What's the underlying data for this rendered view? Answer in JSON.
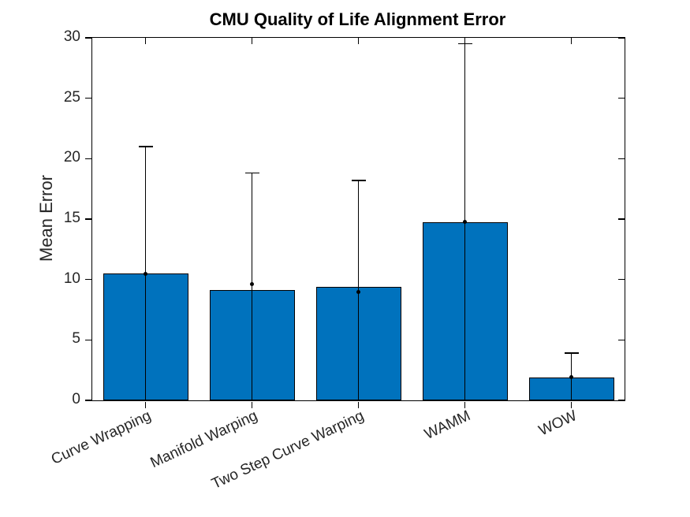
{
  "figure": {
    "background": "#ffffff"
  },
  "chart_data": {
    "type": "bar",
    "title": "CMU Quality of Life Alignment Error",
    "xlabel": "",
    "ylabel": "Mean Error",
    "categories": [
      "Curve Wrapping",
      "Manifold Warping",
      "Two Step Curve Warping",
      "WAMM",
      "WOW"
    ],
    "values": [
      10.5,
      9.1,
      9.4,
      14.75,
      1.9
    ],
    "error_high": [
      21.0,
      18.8,
      18.2,
      29.5,
      3.9
    ],
    "error_low": [
      0,
      0,
      0,
      0,
      0
    ],
    "marker_values": [
      10.5,
      9.65,
      8.95,
      14.8,
      1.9
    ],
    "ylim": [
      0,
      30
    ],
    "yticks": [
      0,
      5,
      10,
      15,
      20,
      25,
      30
    ],
    "grid": false,
    "legend": null,
    "bar_color": "#0072BD",
    "bar_edge_color": "#000000",
    "errorbar_color": "#000000",
    "axis_color": "#000000",
    "text_color": "#262626"
  }
}
